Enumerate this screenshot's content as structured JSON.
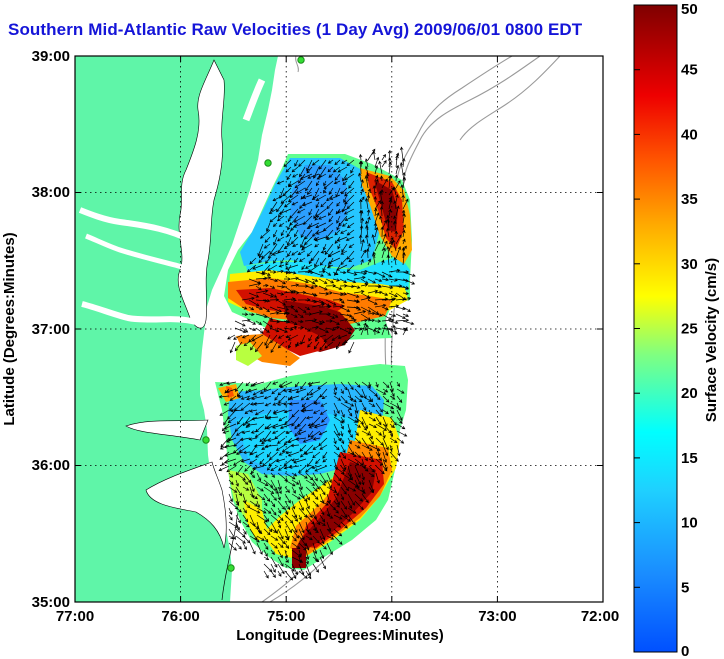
{
  "title": "Southern Mid-Atlantic Raw Velocities (1 Day Avg) 2009/06/01 0800 EDT",
  "colors": {
    "land": "#5ff5a8",
    "water": "#ffffff",
    "title": "#1515d8",
    "bathymetry": "#9a9a9a",
    "arrows": "#000000",
    "station": "#33dd33"
  },
  "map": {
    "x_axis": {
      "label": "Longitude (Degrees:Minutes)",
      "ticks": [
        "77:00",
        "76:00",
        "75:00",
        "74:00",
        "73:00",
        "72:00"
      ],
      "range_deg_west": [
        77,
        72
      ]
    },
    "y_axis": {
      "label": "Latitude (Degrees:Minutes)",
      "ticks": [
        "35:00",
        "36:00",
        "37:00",
        "38:00",
        "39:00"
      ],
      "range_deg_north": [
        35,
        39
      ]
    },
    "grid": "dotted"
  },
  "colorbar": {
    "label": "Surface Velocity (cm/s)",
    "ticks": [
      "0",
      "5",
      "10",
      "15",
      "20",
      "25",
      "30",
      "35",
      "40",
      "45",
      "50"
    ],
    "range": [
      0,
      50
    ],
    "colormap": "jet"
  }
}
